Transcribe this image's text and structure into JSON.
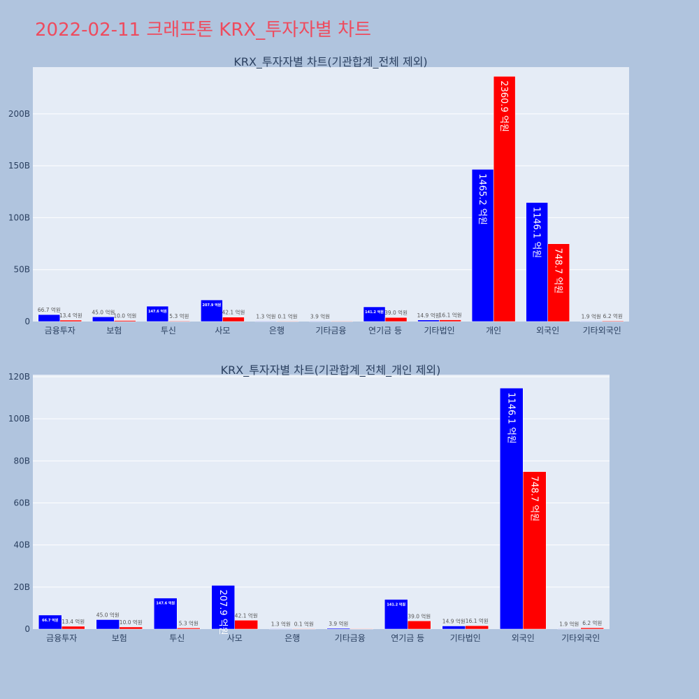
{
  "page": {
    "title": "2022-02-11 크래프톤 KRX_투자자별 차트",
    "background": "#b0c4de",
    "title_color": "#ee4b5e"
  },
  "colors": {
    "buy": "#0000ff",
    "sell": "#ff0000",
    "plot_bg": "#e5ecf6",
    "grid": "#ffffff"
  },
  "chart_data": [
    {
      "type": "bar",
      "title": "KRX_투자자별 차트(기관합계_전체 제외)",
      "categories": [
        "금융투자",
        "보험",
        "투신",
        "사모",
        "은행",
        "기타금융",
        "연기금 등",
        "기타법인",
        "개인",
        "외국인",
        "기타외국인"
      ],
      "yticks": [
        "0",
        "50B",
        "100B",
        "150B",
        "200B"
      ],
      "ytick_values": [
        0,
        50,
        100,
        150,
        200
      ],
      "ylim": [
        0,
        245
      ],
      "y_unit": "B",
      "series": [
        {
          "color": "#0000ff",
          "values": [
            6.67,
            4.5,
            14.76,
            20.79,
            0.13,
            0.39,
            14.12,
            1.49,
            146.52,
            114.61,
            0.19
          ],
          "labels": [
            "66.7 억원",
            "45.0 억원",
            "147.6 억원",
            "207.9 억원",
            "1.3 억원",
            "3.9 억원",
            "141.2 억원",
            "14.9 억원",
            "1465.2 억원",
            "1146.1 억원",
            "1.9 억원"
          ]
        },
        {
          "color": "#ff0000",
          "values": [
            1.34,
            1.0,
            0.53,
            4.21,
            0.01,
            0,
            3.9,
            1.61,
            236.09,
            74.87,
            0.62
          ],
          "labels": [
            "13.4 억원",
            "10.0 억원",
            "5.3 억원",
            "42.1 억원",
            "0.1 억원",
            "",
            "39.0 억원",
            "16.1 억원",
            "2360.9 억원",
            "748.7 억원",
            "6.2 억원"
          ]
        }
      ]
    },
    {
      "type": "bar",
      "title": "KRX_투자자별 차트(기관합계_전체_개인 제외)",
      "categories": [
        "금융투자",
        "보험",
        "투신",
        "사모",
        "은행",
        "기타금융",
        "연기금 등",
        "기타법인",
        "외국인",
        "기타외국인"
      ],
      "yticks": [
        "0",
        "20B",
        "40B",
        "60B",
        "80B",
        "100B",
        "120B"
      ],
      "ytick_values": [
        0,
        20,
        40,
        60,
        80,
        100,
        120
      ],
      "ylim": [
        0,
        121
      ],
      "y_unit": "B",
      "series": [
        {
          "color": "#0000ff",
          "values": [
            6.67,
            4.5,
            14.76,
            20.79,
            0.13,
            0.39,
            14.12,
            1.49,
            114.61,
            0.19
          ],
          "labels": [
            "66.7 억원",
            "45.0 억원",
            "147.6 억원",
            "207.9 억원",
            "1.3 억원",
            "3.9 억원",
            "141.2 억원",
            "14.9 억원",
            "1146.1 억원",
            "1.9 억원"
          ]
        },
        {
          "color": "#ff0000",
          "values": [
            1.34,
            1.0,
            0.53,
            4.21,
            0.01,
            0,
            3.9,
            1.61,
            74.87,
            0.62
          ],
          "labels": [
            "13.4 억원",
            "10.0 억원",
            "5.3 억원",
            "42.1 억원",
            "0.1 억원",
            "",
            "39.0 억원",
            "16.1 억원",
            "748.7 억원",
            "6.2 억원"
          ]
        }
      ]
    }
  ]
}
